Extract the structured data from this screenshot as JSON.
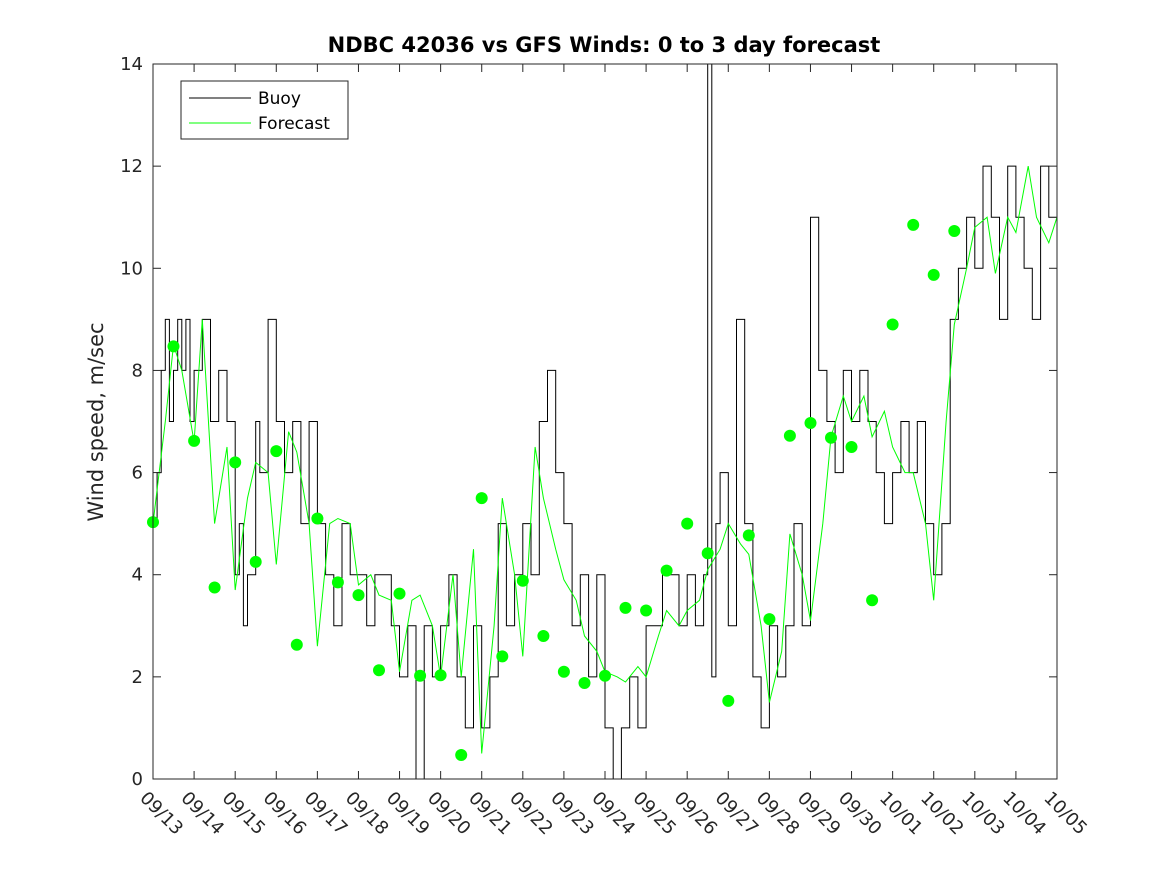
{
  "chart_data": {
    "type": "line",
    "title": "NDBC 42036 vs GFS Winds: 0 to 3 day forecast",
    "xlabel": "",
    "ylabel": "Wind speed, m/sec",
    "xlim": [
      "09/13",
      "10/05"
    ],
    "ylim": [
      0,
      14
    ],
    "yticks": [
      0,
      2,
      4,
      6,
      8,
      10,
      12,
      14
    ],
    "xtick_labels": [
      "09/13",
      "09/14",
      "09/15",
      "09/16",
      "09/17",
      "09/18",
      "09/19",
      "09/20",
      "09/21",
      "09/22",
      "09/23",
      "09/24",
      "09/25",
      "09/26",
      "09/27",
      "09/28",
      "09/29",
      "09/30",
      "10/01",
      "10/02",
      "10/03",
      "10/04",
      "10/05"
    ],
    "grid": false,
    "legend": {
      "placement": "top-left",
      "entries": [
        "Buoy",
        "Forecast"
      ]
    },
    "colors": {
      "buoy": "#000000",
      "forecast": "#00ff00"
    },
    "series": [
      {
        "name": "Buoy",
        "x_days_from_0913": [
          0,
          0.1,
          0.2,
          0.3,
          0.4,
          0.5,
          0.6,
          0.7,
          0.8,
          0.9,
          1.0,
          1.2,
          1.4,
          1.6,
          1.8,
          2.0,
          2.1,
          2.2,
          2.3,
          2.5,
          2.6,
          2.8,
          3.0,
          3.2,
          3.4,
          3.6,
          3.8,
          4.0,
          4.2,
          4.4,
          4.6,
          4.8,
          5.0,
          5.2,
          5.4,
          5.6,
          5.8,
          6.0,
          6.2,
          6.4,
          6.6,
          6.8,
          7.0,
          7.2,
          7.4,
          7.6,
          7.8,
          8.0,
          8.2,
          8.4,
          8.6,
          8.8,
          9.0,
          9.2,
          9.4,
          9.6,
          9.8,
          10.0,
          10.2,
          10.4,
          10.6,
          10.8,
          11.0,
          11.2,
          11.4,
          11.6,
          11.8,
          12.0,
          12.2,
          12.4,
          12.6,
          12.8,
          13.0,
          13.2,
          13.4,
          13.5,
          13.6,
          13.7,
          13.8,
          14.0,
          14.2,
          14.4,
          14.6,
          14.8,
          15.0,
          15.2,
          15.4,
          15.6,
          15.8,
          16.0,
          16.2,
          16.4,
          16.6,
          16.8,
          17.0,
          17.2,
          17.4,
          17.6,
          17.8,
          18.0,
          18.2,
          18.4,
          18.6,
          18.8,
          19.0,
          19.2,
          19.4,
          19.6,
          19.8,
          20.0,
          20.2,
          20.4,
          20.6,
          20.8,
          21.0,
          21.2,
          21.4,
          21.6,
          21.8,
          22.0
        ],
        "values": [
          5,
          6,
          8,
          9,
          7,
          8,
          9,
          8,
          9,
          7,
          8,
          9,
          7,
          8,
          7,
          4,
          5,
          3,
          4,
          7,
          6,
          9,
          7,
          6,
          7,
          5,
          7,
          5,
          4,
          3,
          5,
          4,
          4,
          3,
          4,
          4,
          3,
          2,
          3,
          0,
          3,
          2,
          3,
          4,
          2,
          1,
          3,
          1,
          2,
          5,
          3,
          4,
          5,
          4,
          7,
          8,
          6,
          5,
          3,
          4,
          2,
          4,
          1,
          0,
          1,
          2,
          1,
          3,
          3,
          4,
          4,
          3,
          4,
          3,
          4,
          14,
          2,
          5,
          6,
          3,
          9,
          5,
          2,
          1,
          3,
          2,
          3,
          5,
          3,
          11,
          8,
          7,
          6,
          8,
          7,
          8,
          7,
          6,
          5,
          6,
          7,
          6,
          7,
          5,
          4,
          5,
          9,
          10,
          11,
          10,
          12,
          11,
          9,
          12,
          11,
          10,
          9,
          12,
          11,
          10,
          11
        ],
        "step": true
      },
      {
        "name": "Forecast",
        "note": "multiple forecast traces; representative series",
        "x_days_from_0913": [
          0,
          0.3,
          0.5,
          0.7,
          1.0,
          1.2,
          1.5,
          1.8,
          2.0,
          2.3,
          2.5,
          2.8,
          3.0,
          3.3,
          3.5,
          3.8,
          4.0,
          4.3,
          4.5,
          4.8,
          5.0,
          5.3,
          5.5,
          5.8,
          6.0,
          6.3,
          6.5,
          6.8,
          7.0,
          7.3,
          7.5,
          7.8,
          8.0,
          8.3,
          8.5,
          8.8,
          9.0,
          9.3,
          9.5,
          9.8,
          10.0,
          10.3,
          10.5,
          10.8,
          11.0,
          11.3,
          11.5,
          11.8,
          12.0,
          12.3,
          12.5,
          12.8,
          13.0,
          13.3,
          13.5,
          13.8,
          14.0,
          14.3,
          14.5,
          14.8,
          15.0,
          15.3,
          15.5,
          15.8,
          16.0,
          16.3,
          16.5,
          16.8,
          17.0,
          17.3,
          17.5,
          17.8,
          18.0,
          18.3,
          18.5,
          18.8,
          19.0,
          19.3,
          19.5,
          19.8,
          20.0,
          20.3,
          20.5,
          20.8,
          21.0,
          21.3,
          21.5,
          21.8,
          22.0
        ],
        "values": [
          5,
          7,
          8.5,
          8,
          6.6,
          9,
          5,
          6.5,
          3.7,
          5.5,
          6.2,
          6,
          4.2,
          6.8,
          6.4,
          5,
          2.6,
          5,
          5.1,
          5,
          3.8,
          4,
          3.6,
          3.5,
          2.1,
          3.5,
          3.6,
          3,
          2,
          4,
          2,
          4.5,
          0.5,
          3,
          5.5,
          4,
          2.4,
          6.5,
          5.5,
          4.5,
          3.9,
          3.5,
          2.8,
          2.5,
          2.1,
          2,
          1.9,
          2.2,
          2,
          2.8,
          3.3,
          3,
          3.3,
          3.5,
          4.1,
          4.5,
          5,
          4.6,
          4.4,
          3,
          1.5,
          2.5,
          4.8,
          4,
          3.1,
          5,
          6.7,
          7.5,
          7,
          7.5,
          6.7,
          7.2,
          6.5,
          6,
          6,
          5,
          3.5,
          7,
          8.9,
          10,
          10.8,
          11,
          9.9,
          11,
          10.7,
          12,
          11,
          10.5,
          11
        ]
      }
    ],
    "markers": {
      "series": "Forecast",
      "x_days_from_0913": [
        0,
        0.5,
        1.0,
        1.5,
        2.0,
        2.5,
        3.0,
        3.5,
        4.0,
        4.5,
        5.0,
        5.5,
        6.0,
        6.5,
        7.0,
        7.5,
        8.0,
        8.5,
        9.0,
        9.5,
        10.0,
        10.5,
        11.0,
        11.5,
        12.0,
        12.5,
        13.0,
        13.5,
        14.0,
        14.5,
        15.0,
        15.5,
        16.0,
        16.5,
        17.0,
        17.5,
        18.0,
        18.5,
        19.0,
        19.5,
        20.0,
        20.5,
        21.0,
        21.5
      ],
      "values": [
        5.03,
        8.47,
        6.62,
        3.75,
        6.2,
        4.25,
        6.42,
        2.63,
        5.1,
        3.85,
        3.6,
        2.13,
        3.63,
        2.02,
        2.03,
        0.47,
        5.5,
        2.4,
        3.88,
        2.8,
        2.1,
        1.88,
        2.02,
        3.35,
        3.3,
        4.08,
        5.0,
        4.42,
        1.53,
        4.77,
        3.13,
        6.72,
        6.97,
        6.68,
        6.5,
        3.5,
        8.9,
        10.85,
        9.87,
        10.73,
        null,
        null,
        null,
        null
      ]
    }
  }
}
